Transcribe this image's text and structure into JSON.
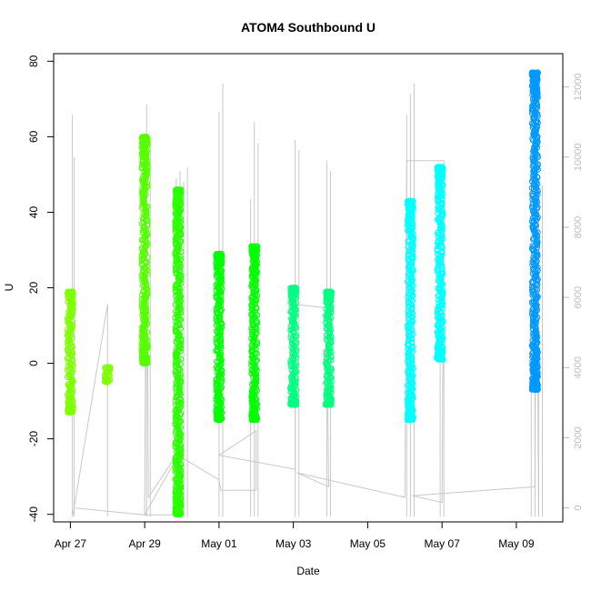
{
  "chart_data": {
    "type": "scatter",
    "title": "ATOM4 Southbound U",
    "xlabel": "Date",
    "ylabel": "U",
    "x_ticks": [
      "Apr 27",
      "Apr 29",
      "May 01",
      "May 03",
      "May 05",
      "May 07",
      "May 09"
    ],
    "y_ticks": [
      "-40",
      "-20",
      "0",
      "20",
      "40",
      "60",
      "80"
    ],
    "y2_ticks": [
      "0",
      "2000",
      "4000",
      "6000",
      "8000",
      "10000",
      "12000"
    ],
    "x_range_days": [
      "Apr 26.55",
      "May 10.25"
    ],
    "ylim": [
      -42,
      82
    ],
    "y2lim": [
      -400,
      12950
    ],
    "grid": false,
    "series": [
      {
        "color": "#7fff00",
        "points": [
          {
            "day": "Apr 27",
            "min": -13,
            "max": 19
          },
          {
            "day": "Apr 28",
            "min": -5,
            "max": -1
          }
        ]
      },
      {
        "color": "#55ff00",
        "points": [
          {
            "day": "Apr 29",
            "min": 0,
            "max": 60
          }
        ]
      },
      {
        "color": "#2aff00",
        "points": [
          {
            "day": "Apr 30",
            "min": -40,
            "max": 46
          }
        ]
      },
      {
        "color": "#00ff00",
        "points": [
          {
            "day": "May 01",
            "min": -15,
            "max": 29
          },
          {
            "day": "May 01 (late)",
            "min": -15,
            "max": 31
          }
        ]
      },
      {
        "color": "#00ff80",
        "points": [
          {
            "day": "May 03",
            "min": -11,
            "max": 20
          },
          {
            "day": "May 03 (late)",
            "min": -11,
            "max": 19
          }
        ]
      },
      {
        "color": "#00ffff",
        "points": [
          {
            "day": "May 06",
            "min": -15,
            "max": 43
          },
          {
            "day": "May 07",
            "min": 1,
            "max": 52
          }
        ]
      },
      {
        "color": "#0099ff",
        "points": [
          {
            "day": "May 09",
            "min": -7,
            "max": 77
          }
        ]
      }
    ]
  }
}
